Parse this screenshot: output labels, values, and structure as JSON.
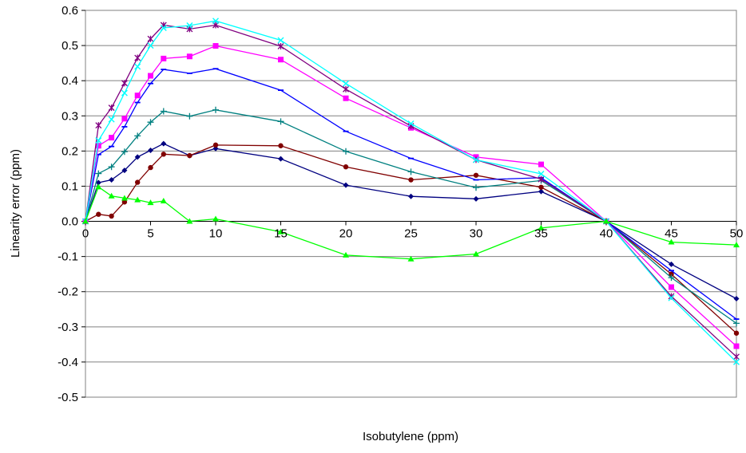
{
  "chart_data": {
    "type": "line",
    "title": "",
    "xlabel": "Isobutylene (ppm)",
    "ylabel": "Linearity error (ppm)",
    "x": [
      0,
      1,
      2,
      3,
      4,
      5,
      6,
      8,
      10,
      15,
      20,
      25,
      30,
      35,
      40,
      45,
      50
    ],
    "x_ticks": [
      0,
      5,
      10,
      15,
      20,
      25,
      30,
      35,
      40,
      45,
      50
    ],
    "y_ticks": [
      0.6,
      0.5,
      0.4,
      0.3,
      0.2,
      0.1,
      0.0,
      -0.1,
      -0.2,
      -0.3,
      -0.4,
      -0.5
    ],
    "xlim": [
      0,
      50
    ],
    "ylim": [
      -0.5,
      0.6
    ],
    "grid": "horizontal",
    "legend": "none",
    "series": [
      {
        "color": "#000080",
        "marker": "diamond",
        "values": [
          0,
          0.11,
          0.118,
          0.145,
          0.183,
          0.202,
          0.221,
          0.187,
          0.207,
          0.178,
          0.103,
          0.071,
          0.064,
          0.085,
          0,
          -0.122,
          -0.22
        ]
      },
      {
        "color": "#800000",
        "marker": "circle",
        "values": [
          0,
          0.02,
          0.015,
          0.055,
          0.111,
          0.153,
          0.191,
          0.187,
          0.217,
          0.215,
          0.155,
          0.118,
          0.131,
          0.097,
          0,
          -0.15,
          -0.318
        ]
      },
      {
        "color": "#008080",
        "marker": "plus",
        "values": [
          0,
          0.136,
          0.155,
          0.198,
          0.243,
          0.282,
          0.313,
          0.299,
          0.317,
          0.284,
          0.199,
          0.141,
          0.096,
          0.116,
          0,
          -0.16,
          -0.29
        ]
      },
      {
        "color": "#0000ff",
        "marker": "dash",
        "values": [
          0,
          0.19,
          0.213,
          0.269,
          0.338,
          0.392,
          0.432,
          0.421,
          0.434,
          0.373,
          0.256,
          0.179,
          0.118,
          0.124,
          0,
          -0.14,
          -0.278
        ]
      },
      {
        "color": "#ff00ff",
        "marker": "square",
        "values": [
          0,
          0.215,
          0.238,
          0.292,
          0.358,
          0.414,
          0.463,
          0.469,
          0.499,
          0.46,
          0.35,
          0.266,
          0.183,
          0.162,
          0,
          -0.187,
          -0.355
        ]
      },
      {
        "color": "#800080",
        "marker": "asterisk",
        "values": [
          0,
          0.273,
          0.323,
          0.393,
          0.465,
          0.519,
          0.558,
          0.547,
          0.558,
          0.498,
          0.376,
          0.271,
          0.175,
          0.12,
          0,
          -0.213,
          -0.385
        ]
      },
      {
        "color": "#00ffff",
        "marker": "x",
        "values": [
          0,
          0.23,
          0.29,
          0.365,
          0.44,
          0.5,
          0.55,
          0.557,
          0.57,
          0.515,
          0.392,
          0.278,
          0.175,
          0.135,
          0,
          -0.218,
          -0.4
        ]
      },
      {
        "color": "#00ff00",
        "marker": "triangle",
        "values": [
          0,
          0.098,
          0.072,
          0.066,
          0.061,
          0.053,
          0.058,
          0.0,
          0.007,
          -0.03,
          -0.096,
          -0.107,
          -0.093,
          -0.019,
          0,
          -0.059,
          -0.067
        ]
      }
    ]
  }
}
